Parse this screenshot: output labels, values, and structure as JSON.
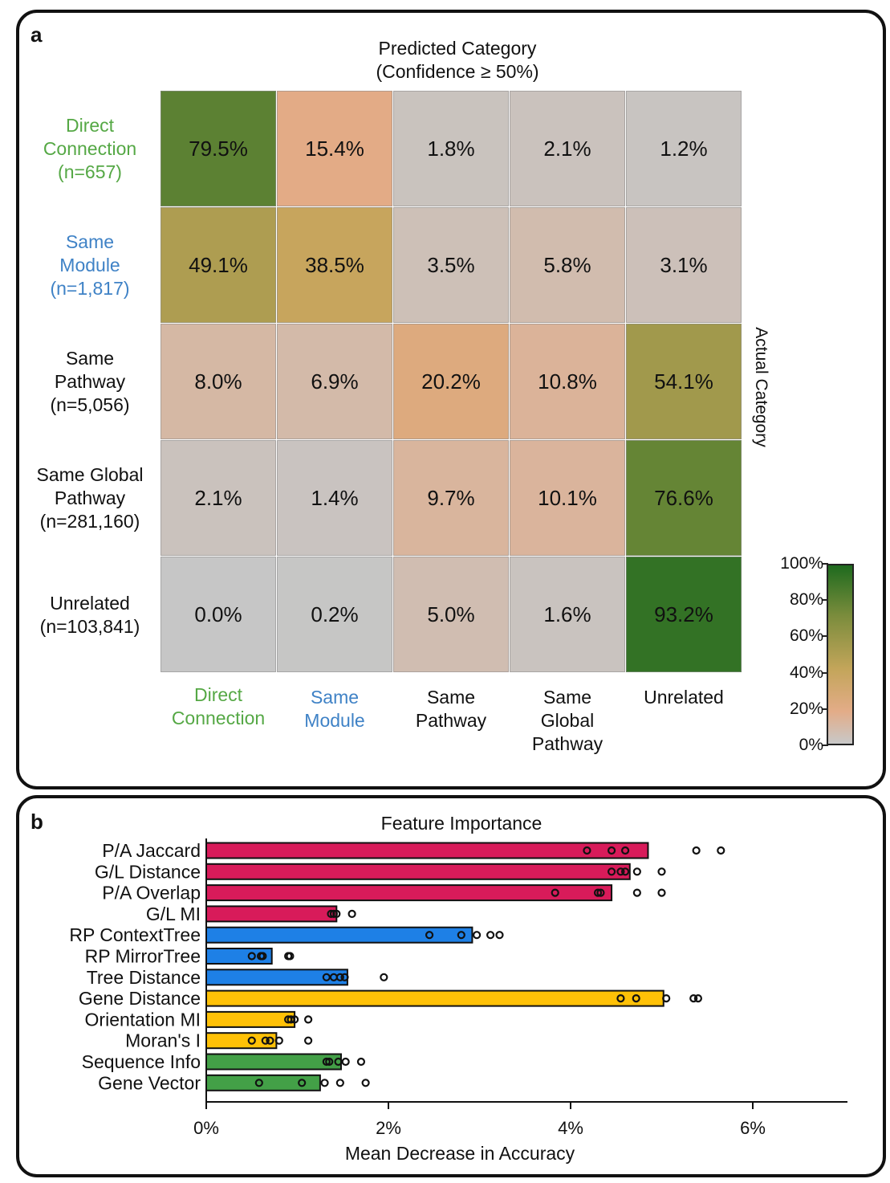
{
  "panel_a": {
    "letter": "a",
    "title_line1": "Predicted Category",
    "title_line2": "(Confidence ≥ 50%)",
    "side_label": "Actual Category"
  },
  "panel_b": {
    "letter": "b"
  },
  "colors": {
    "direct_label": "#55a845",
    "module_label": "#3f82c6",
    "magenta": "#d81b5a",
    "blue": "#1e80e6",
    "yellow": "#ffc107",
    "green": "#43a047"
  },
  "chart_data": [
    {
      "type": "heatmap",
      "title": "Predicted Category (Confidence ≥ 50%)",
      "xlabel": "",
      "ylabel": "Actual Category",
      "rows": [
        {
          "lines": [
            "Direct",
            "Connection",
            "(n=657)"
          ],
          "color": "#55a845"
        },
        {
          "lines": [
            "Same",
            "Module",
            "(n=1,817)"
          ],
          "color": "#3f82c6"
        },
        {
          "lines": [
            "Same",
            "Pathway",
            "(n=5,056)"
          ],
          "color": "#111111"
        },
        {
          "lines": [
            "Same Global",
            "Pathway",
            "(n=281,160)"
          ],
          "color": "#111111"
        },
        {
          "lines": [
            "Unrelated",
            "(n=103,841)"
          ],
          "color": "#111111"
        }
      ],
      "columns": [
        {
          "lines": [
            "Direct",
            "Connection"
          ],
          "color": "#55a845"
        },
        {
          "lines": [
            "Same",
            "Module"
          ],
          "color": "#3f82c6"
        },
        {
          "lines": [
            "Same",
            "Pathway"
          ],
          "color": "#111111"
        },
        {
          "lines": [
            "Same",
            "Global",
            "Pathway"
          ],
          "color": "#111111"
        },
        {
          "lines": [
            "Unrelated"
          ],
          "color": "#111111"
        }
      ],
      "values": [
        [
          79.5,
          15.4,
          1.8,
          2.1,
          1.2
        ],
        [
          49.1,
          38.5,
          3.5,
          5.8,
          3.1
        ],
        [
          8.0,
          6.9,
          20.2,
          10.8,
          54.1
        ],
        [
          2.1,
          1.4,
          9.7,
          10.1,
          76.6
        ],
        [
          0.0,
          0.2,
          5.0,
          1.6,
          93.2
        ]
      ],
      "colorbar": {
        "ticks": [
          "100%",
          "80%",
          "60%",
          "40%",
          "20%",
          "0%"
        ],
        "range": [
          0,
          100
        ]
      }
    },
    {
      "type": "bar",
      "orientation": "horizontal",
      "title": "Feature Importance",
      "xlabel": "Mean Decrease in Accuracy",
      "xlim": [
        0,
        7
      ],
      "xticks": [
        "0%",
        "2%",
        "4%",
        "6%"
      ],
      "xtick_values": [
        0,
        2,
        4,
        6
      ],
      "categories": [
        "P/A Jaccard",
        "G/L Distance",
        "P/A Overlap",
        "G/L MI",
        "RP ContextTree",
        "RP MirrorTree",
        "Tree Distance",
        "Gene Distance",
        "Orientation MI",
        "Moran's I",
        "Sequence Info",
        "Gene Vector"
      ],
      "values": [
        4.85,
        4.65,
        4.45,
        1.43,
        2.92,
        0.72,
        1.55,
        5.02,
        0.97,
        0.77,
        1.48,
        1.25
      ],
      "colors": [
        "#d81b5a",
        "#d81b5a",
        "#d81b5a",
        "#d81b5a",
        "#1e80e6",
        "#1e80e6",
        "#1e80e6",
        "#ffc107",
        "#ffc107",
        "#ffc107",
        "#43a047",
        "#43a047"
      ],
      "points": [
        [
          4.18,
          4.45,
          4.6,
          5.38,
          5.65
        ],
        [
          4.45,
          4.55,
          4.6,
          4.73,
          5.0
        ],
        [
          3.83,
          4.3,
          4.33,
          4.73,
          5.0
        ],
        [
          1.37,
          1.4,
          1.43,
          1.6
        ],
        [
          2.45,
          2.8,
          2.97,
          3.12,
          3.22
        ],
        [
          0.5,
          0.6,
          0.62,
          0.9,
          0.92
        ],
        [
          1.32,
          1.4,
          1.47,
          1.52,
          1.95
        ],
        [
          4.55,
          4.72,
          5.05,
          5.35,
          5.4
        ],
        [
          0.9,
          0.93,
          0.97,
          1.12
        ],
        [
          0.5,
          0.65,
          0.7,
          0.8,
          1.12
        ],
        [
          1.32,
          1.35,
          1.45,
          1.53,
          1.7
        ],
        [
          0.58,
          1.05,
          1.3,
          1.47,
          1.75
        ]
      ]
    }
  ]
}
